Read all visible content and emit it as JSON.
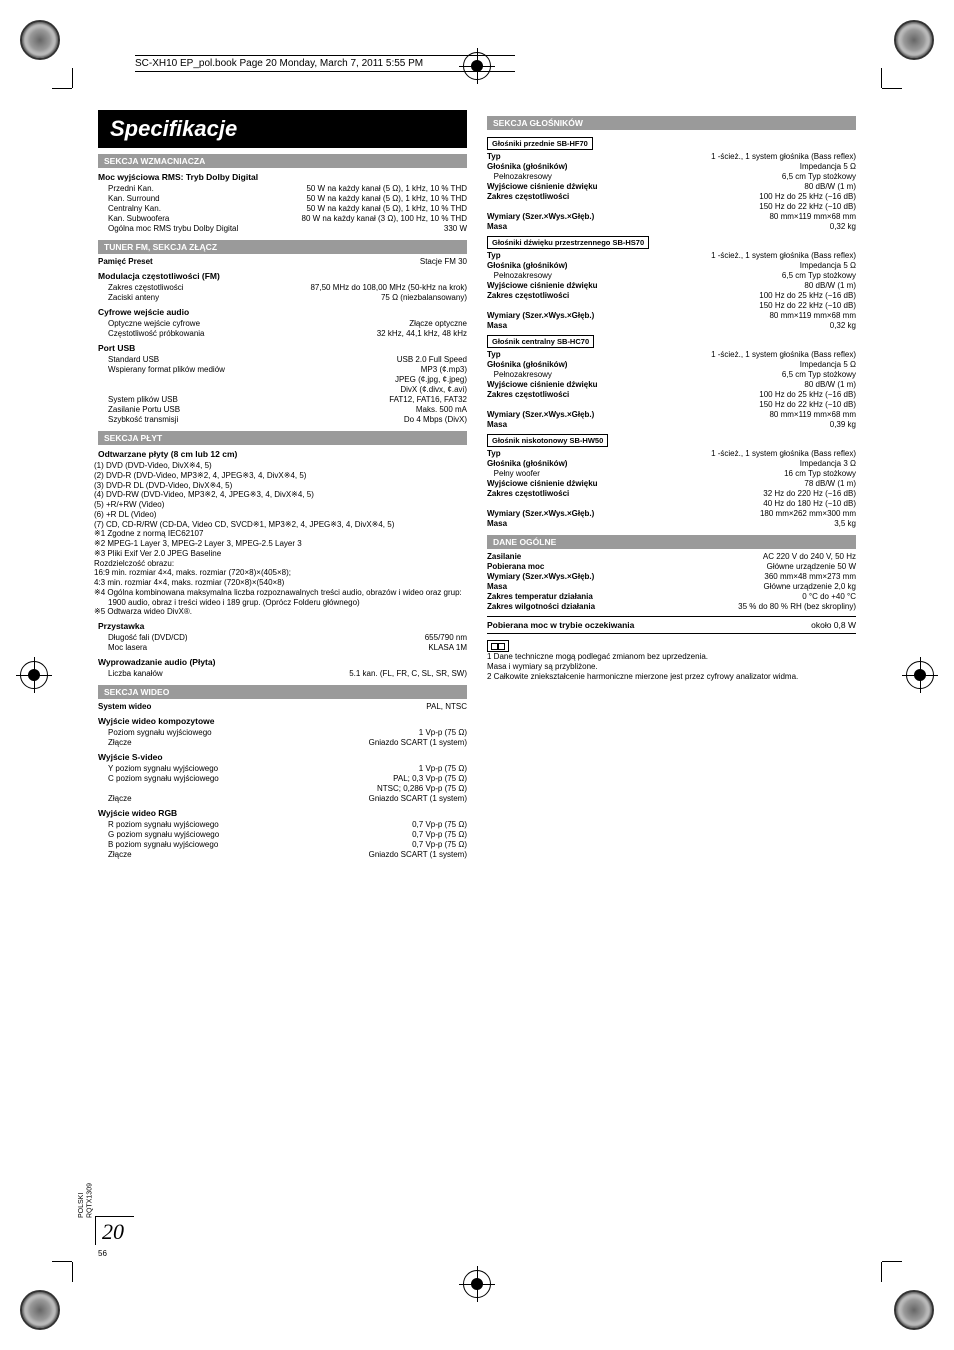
{
  "runhead": "SC-XH10 EP_pol.book  Page 20  Monday, March 7, 2011  5:55 PM",
  "side_label_1": "POLSKI",
  "side_label_2": "RQTX1309",
  "page_number_big": "20",
  "page_number_small": "56",
  "title": "Specifikacje",
  "amp": {
    "head": "SEKCJA WZMACNIACZA",
    "mode": "Moc wyjściowa RMS: Tryb Dolby Digital",
    "rows": [
      [
        "Przedni Kan.",
        "50 W na każdy kanał (5 Ω), 1 kHz, 10 % THD"
      ],
      [
        "Kan. Surround",
        "50 W na każdy kanał (5 Ω), 1 kHz, 10 % THD"
      ],
      [
        "Centralny Kan.",
        "50 W na każdy kanał (5 Ω), 1 kHz, 10 % THD"
      ],
      [
        "Kan. Subwoofera",
        "80 W na każdy kanał (3 Ω), 100 Hz, 10 % THD"
      ]
    ],
    "total": [
      "Ogólna moc RMS trybu Dolby Digital",
      "330  W"
    ]
  },
  "tuner": {
    "head": "TUNER FM, SEKCJA ZŁĄCZ",
    "preset": [
      "Pamięć Preset",
      "Stacje FM 30"
    ],
    "mod": "Modulacja częstotliwości (FM)",
    "range_l": "Zakres częstotliwości",
    "range_r": "87,50 MHz do 108,00 MHz (50-kHz na krok)",
    "ant": [
      "Zaciski anteny",
      "75 Ω (niezbalansowany)"
    ],
    "dig": "Cyfrowe wejście audio",
    "opt": [
      "Optyczne wejście cyfrowe",
      "Złącze optyczne"
    ],
    "samp": [
      "Częstotliwość próbkowania",
      "32 kHz, 44,1 kHz, 48 kHz"
    ],
    "usb_h": "Port USB",
    "usb1": [
      "Standard USB",
      "USB 2.0 Full Speed"
    ],
    "usb2_l": "Wspierany format plików mediów",
    "usb2_r": [
      "MP3 (¢.mp3)",
      "JPEG (¢.jpg, ¢.jpeg)",
      "DivX (¢.divx, ¢.avi)"
    ],
    "usb3": [
      "System plików USB",
      "FAT12, FAT16, FAT32"
    ],
    "usb4": [
      "Zasilanie Portu USB",
      "Maks. 500 mA"
    ],
    "usb5": [
      "Szybkość transmisji",
      "Do 4 Mbps (DivX)"
    ]
  },
  "disc": {
    "head": "SEKCJA PŁYT",
    "play_h": "Odtwarzane płyty (8 cm lub 12 cm)",
    "items": [
      "(1) DVD (DVD-Video, DivX※4, 5)",
      "(2) DVD-R (DVD-Video, MP3※2, 4, JPEG※3, 4, DivX※4, 5)",
      "(3) DVD-R DL (DVD-Video, DivX※4, 5)",
      "(4) DVD-RW (DVD-Video, MP3※2, 4, JPEG※3, 4, DivX※4, 5)",
      "(5) +R/+RW (Video)",
      "(6) +R DL (Video)",
      "(7) CD, CD-R/RW (CD-DA, Video CD, SVCD※1, MP3※2, 4, JPEG※3, 4, DivX※4, 5)"
    ],
    "foot": [
      "※1  Zgodne z normą IEC62107",
      "※2  MPEG-1 Layer 3, MPEG-2 Layer 3, MPEG-2.5 Layer 3",
      "※3  Pliki Exif Ver 2.0 JPEG Baseline",
      "Rozdzielczość obrazu:",
      "16:9 min. rozmiar 4×4, maks. rozmiar (720×8)×(405×8);",
      "4:3 min. rozmiar 4×4, maks. rozmiar (720×8)×(540×8)",
      "※4  Ogólna kombinowana maksymalna liczba rozpoznawalnych treści audio, obrazów i wideo oraz grup: 1900 audio, obraz i treści wideo i 189 grup. (Oprócz Folderu głównego)",
      "※5  Odtwarza wideo DivX®."
    ],
    "pickup": "Przystawka",
    "wave": [
      "Długość fali (DVD/CD)",
      "655/790 nm"
    ],
    "laser": [
      "Moc lasera",
      "KLASA 1M"
    ],
    "aout_h": "Wyprowadzanie audio (Płyta)",
    "aout": [
      "Liczba kanałów",
      "5.1 kan. (FL, FR, C, SL, SR, SW)"
    ]
  },
  "video": {
    "head": "SEKCJA WIDEO",
    "sys": [
      "System wideo",
      "PAL, NTSC"
    ],
    "comp_h": "Wyjście wideo kompozytowe",
    "comp": [
      [
        "Poziom sygnału wyjściowego",
        "1 Vp-p (75 Ω)"
      ],
      [
        "Złącze",
        "Gniazdo SCART (1 system)"
      ]
    ],
    "sv_h": "Wyjście S-video",
    "sv": [
      [
        "Y poziom sygnału wyjściowego",
        "1 Vp-p (75 Ω)"
      ],
      [
        "C poziom sygnału wyjściowego",
        "PAL; 0,3 Vp-p (75 Ω)"
      ],
      [
        "",
        "NTSC; 0,286 Vp-p (75 Ω)"
      ],
      [
        "Złącze",
        "Gniazdo SCART (1 system)"
      ]
    ],
    "rgb_h": "Wyjście wideo RGB",
    "rgb": [
      [
        "R poziom sygnału wyjściowego",
        "0,7 Vp-p (75 Ω)"
      ],
      [
        "G poziom sygnału wyjściowego",
        "0,7 Vp-p (75 Ω)"
      ],
      [
        "B poziom sygnału wyjściowego",
        "0,7 Vp-p (75 Ω)"
      ],
      [
        "Złącze",
        "Gniazdo SCART (1 system)"
      ]
    ]
  },
  "spk": {
    "head": "SEKCJA GŁOŚNIKÓW",
    "groups": [
      {
        "box": "Głośniki przednie SB-HF70",
        "rows": [
          [
            "Typ",
            "1 -ścież., 1 system głośnika (Bass reflex)"
          ],
          [
            "Głośnika (głośników)",
            "Impedancja 5 Ω"
          ],
          [
            "   Pełnozakresowy",
            "6,5 cm Typ stożkowy"
          ],
          [
            "Wyjściowe ciśnienie dźwięku",
            "80 dB/W (1 m)"
          ],
          [
            "Zakres częstotliwości",
            "100 Hz do 25 kHz (−16 dB)"
          ],
          [
            "",
            "150 Hz do 22 kHz (−10 dB)"
          ],
          [
            "Wymiary (Szer.×Wys.×Głęb.)",
            "80 mm×119 mm×68 mm"
          ],
          [
            "Masa",
            "0,32 kg"
          ]
        ]
      },
      {
        "box": "Głośniki dźwięku przestrzennego SB-HS70",
        "rows": [
          [
            "Typ",
            "1 -ścież., 1 system głośnika (Bass reflex)"
          ],
          [
            "Głośnika (głośników)",
            "Impedancja 5 Ω"
          ],
          [
            "   Pełnozakresowy",
            "6,5 cm Typ stożkowy"
          ],
          [
            "Wyjściowe ciśnienie dźwięku",
            "80 dB/W (1 m)"
          ],
          [
            "Zakres częstotliwości",
            "100 Hz do 25 kHz (−16 dB)"
          ],
          [
            "",
            "150 Hz do 22 kHz (−10 dB)"
          ],
          [
            "Wymiary (Szer.×Wys.×Głęb.)",
            "80 mm×119 mm×68 mm"
          ],
          [
            "Masa",
            "0,32 kg"
          ]
        ]
      },
      {
        "box": "Głośnik centralny SB-HC70",
        "rows": [
          [
            "Typ",
            "1 -ścież., 1 system głośnika (Bass reflex)"
          ],
          [
            "Głośnika (głośników)",
            "Impedancja 5 Ω"
          ],
          [
            "   Pełnozakresowy",
            "6,5 cm Typ stożkowy"
          ],
          [
            "Wyjściowe ciśnienie dźwięku",
            "80 dB/W (1 m)"
          ],
          [
            "Zakres częstotliwości",
            "100 Hz do 25 kHz (−16 dB)"
          ],
          [
            "",
            "150 Hz do 22 kHz (−10 dB)"
          ],
          [
            "Wymiary (Szer.×Wys.×Głęb.)",
            "80 mm×119 mm×68 mm"
          ],
          [
            "Masa",
            "0,39 kg"
          ]
        ]
      },
      {
        "box": "Głośnik niskotonowy SB-HW50",
        "rows": [
          [
            "Typ",
            "1 -ścież., 1 system głośnika (Bass reflex)"
          ],
          [
            "Głośnika (głośników)",
            "Impedancja 3 Ω"
          ],
          [
            "   Pełny woofer",
            "16 cm Typ stożkowy"
          ],
          [
            "Wyjściowe ciśnienie dźwięku",
            "78 dB/W (1 m)"
          ],
          [
            "Zakres częstotliwości",
            "32 Hz do 220 Hz (−16 dB)"
          ],
          [
            "",
            "40 Hz do 180 Hz (−10 dB)"
          ],
          [
            "Wymiary (Szer.×Wys.×Głęb.)",
            "180 mm×262 mm×300 mm"
          ],
          [
            "Masa",
            "3,5 kg"
          ]
        ]
      }
    ]
  },
  "gen": {
    "head": "DANE OGÓLNE",
    "rows": [
      [
        "Zasilanie",
        "AC 220 V do 240 V, 50 Hz"
      ],
      [
        "Pobierana moc",
        "Główne urządzenie 50 W"
      ],
      [
        "Wymiary (Szer.×Wys.×Głęb.)",
        "360 mm×48 mm×273 mm"
      ],
      [
        "Masa",
        "Główne urządzenie 2,0 kg"
      ],
      [
        "Zakres temperatur działania",
        "0 °C do +40 °C"
      ],
      [
        "Zakres wilgotności działania",
        "35 % do 80 % RH (bez skropliny)"
      ]
    ],
    "standby": [
      "Pobierana moc w trybie oczekiwania",
      "około 0,8 W"
    ]
  },
  "notes": [
    "1   Dane techniczne mogą podlegać zmianom bez uprzedzenia.",
    "     Masa i wymiary są przybliżone.",
    "2   Całkowite zniekształcenie harmoniczne mierzone jest przez cyfrowy analizator widma."
  ]
}
